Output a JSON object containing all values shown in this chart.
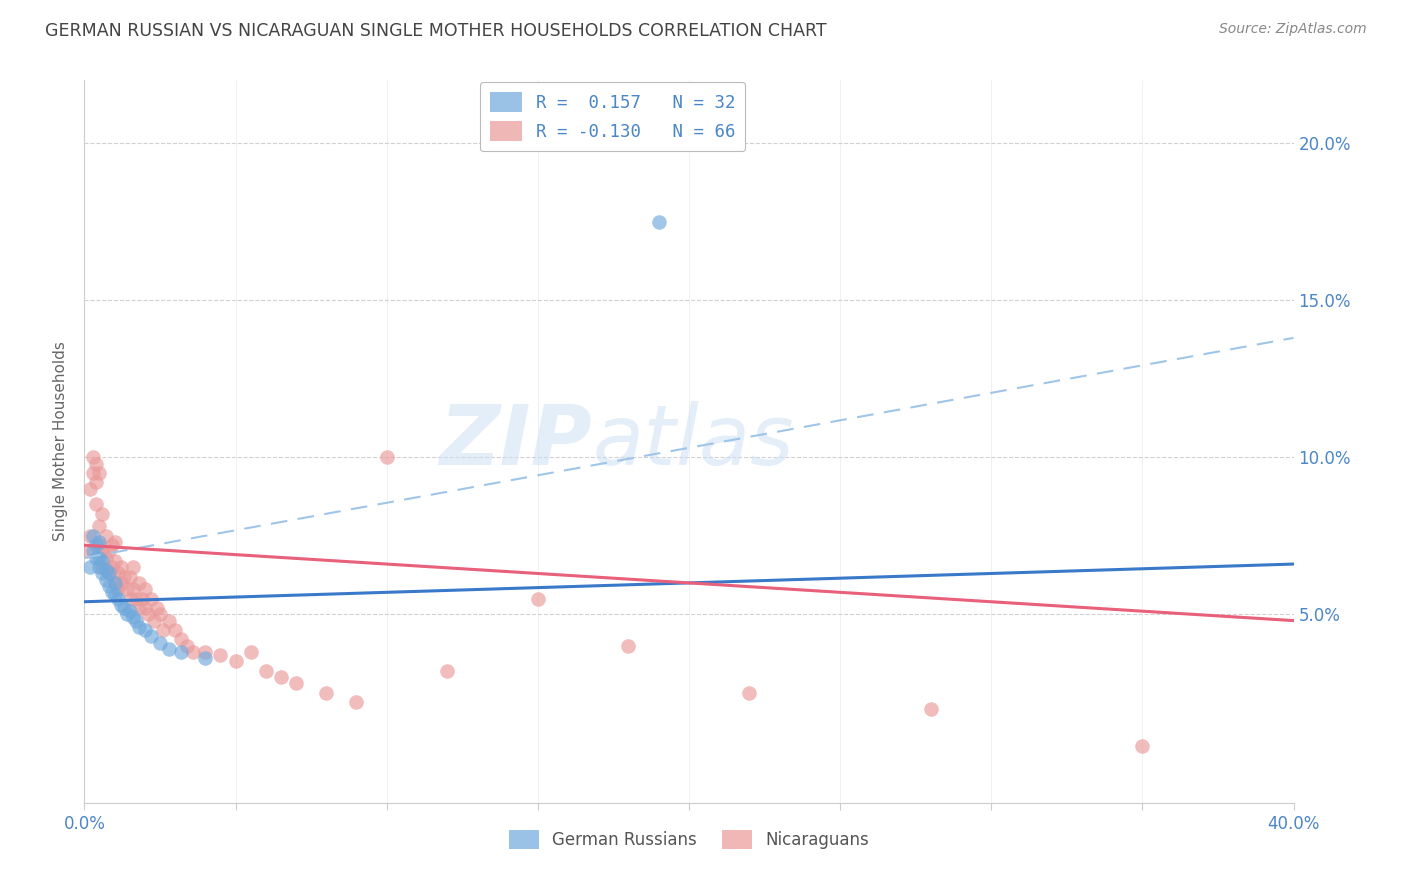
{
  "title": "GERMAN RUSSIAN VS NICARAGUAN SINGLE MOTHER HOUSEHOLDS CORRELATION CHART",
  "source": "Source: ZipAtlas.com",
  "ylabel": "Single Mother Households",
  "xlim": [
    0.0,
    0.4
  ],
  "ylim": [
    -0.01,
    0.22
  ],
  "yticks": [
    0.05,
    0.1,
    0.15,
    0.2
  ],
  "ytick_labels": [
    "5.0%",
    "10.0%",
    "15.0%",
    "20.0%"
  ],
  "german_russian_color": "#6fa8dc",
  "nicaraguan_color": "#ea9999",
  "german_russian_R": 0.157,
  "german_russian_N": 32,
  "nicaraguan_R": -0.13,
  "nicaraguan_N": 66,
  "watermark_zip": "ZIP",
  "watermark_atlas": "atlas",
  "background_color": "#ffffff",
  "grid_color": "#cccccc",
  "axis_color": "#4a86c8",
  "title_color": "#444444",
  "source_color": "#888888",
  "ylabel_color": "#666666",
  "legend_label_color": "#4a86c8",
  "bottom_legend_color": "#555555",
  "gr_line_color": "#3a78c9",
  "nic_line_color": "#e8607a",
  "dash_line_color": "#9fc5e8",
  "gr_x": [
    0.002,
    0.003,
    0.003,
    0.004,
    0.004,
    0.005,
    0.005,
    0.005,
    0.006,
    0.006,
    0.007,
    0.007,
    0.008,
    0.008,
    0.009,
    0.01,
    0.01,
    0.011,
    0.012,
    0.013,
    0.014,
    0.015,
    0.016,
    0.017,
    0.018,
    0.02,
    0.022,
    0.025,
    0.028,
    0.032,
    0.04,
    0.19
  ],
  "gr_y": [
    0.065,
    0.07,
    0.075,
    0.068,
    0.072,
    0.065,
    0.068,
    0.073,
    0.063,
    0.067,
    0.061,
    0.064,
    0.059,
    0.063,
    0.057,
    0.056,
    0.06,
    0.055,
    0.053,
    0.052,
    0.05,
    0.051,
    0.049,
    0.048,
    0.046,
    0.045,
    0.043,
    0.041,
    0.039,
    0.038,
    0.036,
    0.175
  ],
  "nic_x": [
    0.001,
    0.002,
    0.002,
    0.003,
    0.003,
    0.004,
    0.004,
    0.004,
    0.005,
    0.005,
    0.005,
    0.006,
    0.006,
    0.006,
    0.007,
    0.007,
    0.008,
    0.008,
    0.009,
    0.009,
    0.01,
    0.01,
    0.01,
    0.011,
    0.011,
    0.012,
    0.012,
    0.013,
    0.014,
    0.015,
    0.015,
    0.016,
    0.016,
    0.017,
    0.018,
    0.018,
    0.019,
    0.02,
    0.02,
    0.021,
    0.022,
    0.023,
    0.024,
    0.025,
    0.026,
    0.028,
    0.03,
    0.032,
    0.034,
    0.036,
    0.04,
    0.045,
    0.05,
    0.055,
    0.06,
    0.065,
    0.07,
    0.08,
    0.09,
    0.1,
    0.12,
    0.15,
    0.18,
    0.22,
    0.28,
    0.35
  ],
  "nic_y": [
    0.07,
    0.075,
    0.09,
    0.095,
    0.1,
    0.085,
    0.092,
    0.098,
    0.072,
    0.078,
    0.095,
    0.065,
    0.07,
    0.082,
    0.068,
    0.075,
    0.063,
    0.07,
    0.065,
    0.072,
    0.06,
    0.067,
    0.073,
    0.063,
    0.058,
    0.065,
    0.06,
    0.062,
    0.058,
    0.055,
    0.062,
    0.058,
    0.065,
    0.055,
    0.06,
    0.052,
    0.055,
    0.052,
    0.058,
    0.05,
    0.055,
    0.048,
    0.052,
    0.05,
    0.045,
    0.048,
    0.045,
    0.042,
    0.04,
    0.038,
    0.038,
    0.037,
    0.035,
    0.038,
    0.032,
    0.03,
    0.028,
    0.025,
    0.022,
    0.1,
    0.032,
    0.055,
    0.04,
    0.025,
    0.02,
    0.008
  ],
  "gr_line_x0": 0.0,
  "gr_line_y0": 0.054,
  "gr_line_x1": 0.4,
  "gr_line_y1": 0.066,
  "nic_line_x0": 0.0,
  "nic_line_y0": 0.072,
  "nic_line_x1": 0.4,
  "nic_line_y1": 0.048,
  "dash_line_x0": 0.0,
  "dash_line_y0": 0.068,
  "dash_line_x1": 0.4,
  "dash_line_y1": 0.138
}
